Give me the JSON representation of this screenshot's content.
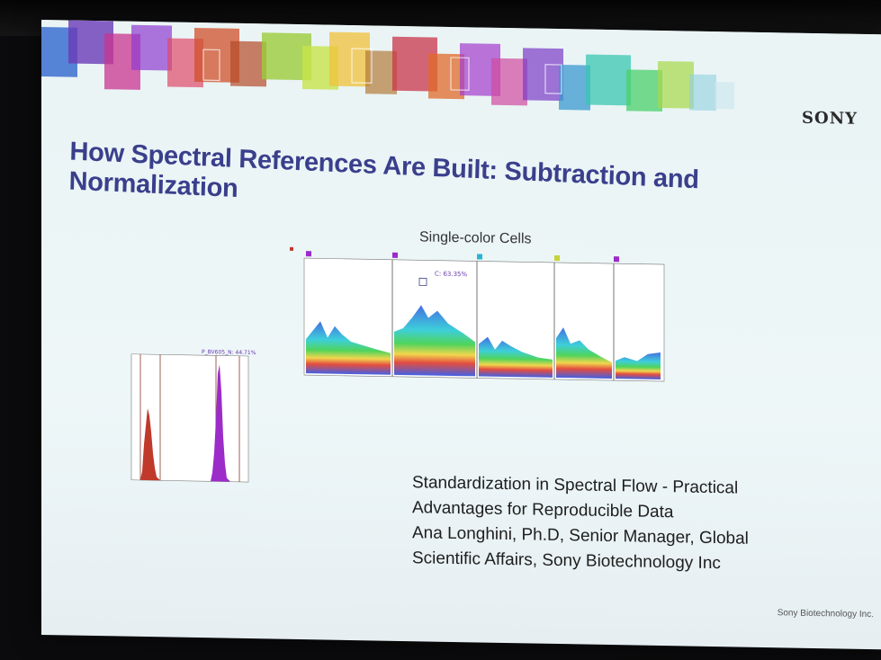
{
  "brand": {
    "logo": "SONY"
  },
  "slide": {
    "title": "How Spectral References Are Built: Subtraction and Normalization",
    "chart_title": "Single-color Cells",
    "spectrum_gate_label": "C: 63.35%",
    "histogram_gate_label": "P_BV605_N: 44.71%",
    "caption_lines": [
      "Standardization in Spectral Flow - Practical",
      "Advantages for Reproducible Data",
      "Ana Longhini, Ph.D, Senior Manager, Global",
      "Scientific Affairs, Sony Biotechnology Inc"
    ],
    "footer": "Sony Biotechnology Inc."
  },
  "colors": {
    "title": "#3a3f8c",
    "background": "#eaf4f5",
    "histogram_left": "#c0392b",
    "histogram_right": "#9b2cc9"
  }
}
